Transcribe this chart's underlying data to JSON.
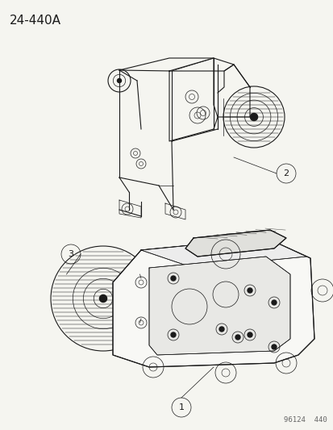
{
  "title_id": "24-440A",
  "diagram_id": "96124  440",
  "background_color": "#f5f5f0",
  "line_color": "#1a1a1a",
  "figsize": [
    4.14,
    5.33
  ],
  "dpi": 100,
  "title_fontsize": 11,
  "footer_fontsize": 6.5
}
